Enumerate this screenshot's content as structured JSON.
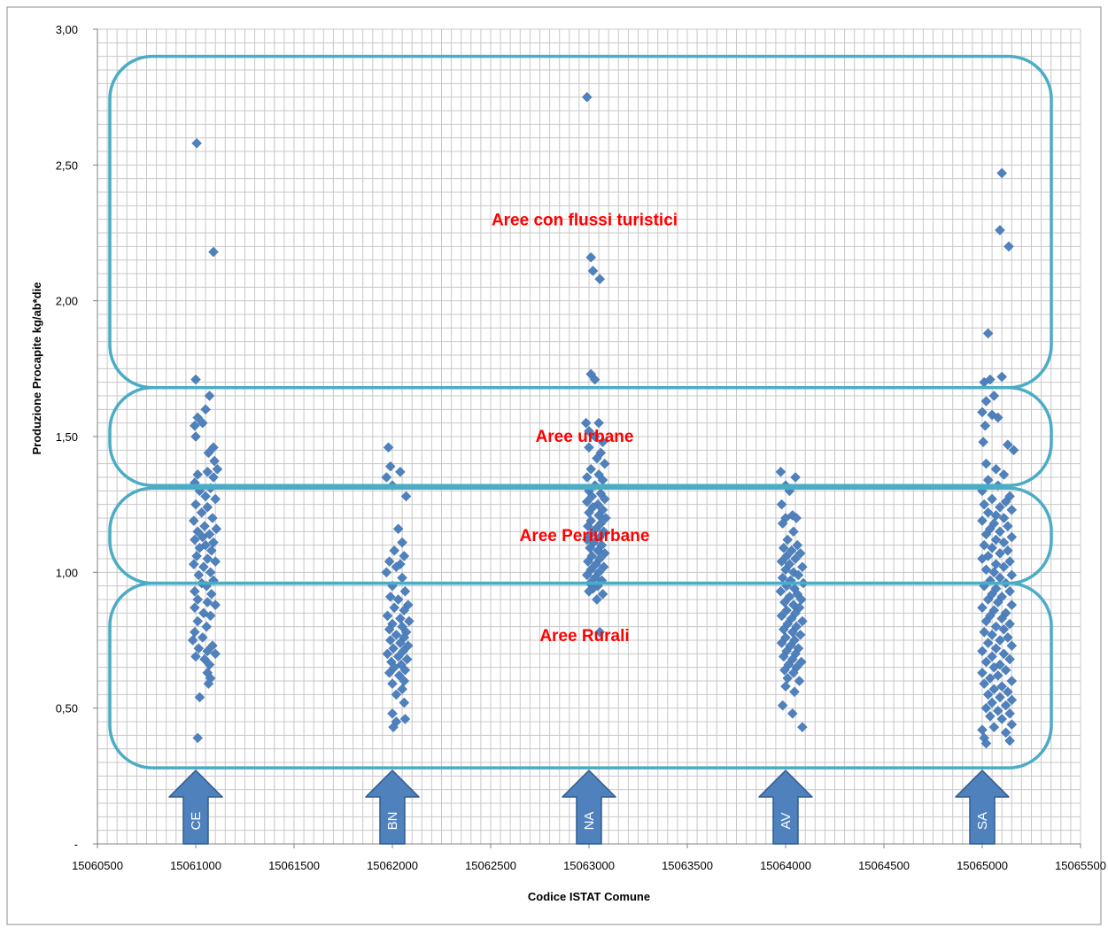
{
  "chart_data": {
    "type": "scatter",
    "title": "",
    "xlabel": "Codice ISTAT Comune",
    "ylabel": "Produzione Procapite  kg/ab*die",
    "xlim": [
      15060500,
      15065500
    ],
    "ylim": [
      0,
      3.0
    ],
    "grid": true,
    "x_ticks": [
      {
        "value": 15060500,
        "label": "15060500"
      },
      {
        "value": 15061000,
        "label": "15061000"
      },
      {
        "value": 15061500,
        "label": "15061500"
      },
      {
        "value": 15062000,
        "label": "15062000"
      },
      {
        "value": 15062500,
        "label": "15062500"
      },
      {
        "value": 15063000,
        "label": "15063000"
      },
      {
        "value": 15063500,
        "label": "15063500"
      },
      {
        "value": 15064000,
        "label": "15064000"
      },
      {
        "value": 15064500,
        "label": "15064500"
      },
      {
        "value": 15065000,
        "label": "15065000"
      },
      {
        "value": 15065500,
        "label": "15065500"
      }
    ],
    "y_ticks": [
      {
        "value": 0,
        "label": "-"
      },
      {
        "value": 0.5,
        "label": "0,50"
      },
      {
        "value": 1.0,
        "label": "1,00"
      },
      {
        "value": 1.5,
        "label": "1,50"
      },
      {
        "value": 2.0,
        "label": "2,00"
      },
      {
        "value": 2.5,
        "label": "2,50"
      },
      {
        "value": 3.0,
        "label": "3,00"
      }
    ],
    "marker_color": "#4F81BD",
    "band_color": "#4BACC6",
    "band_label_color": "#FF0000",
    "arrow_color": "#4F81BD",
    "bands": [
      {
        "label": "Aree con flussi turistici",
        "ymin": 1.68,
        "ymax": 2.9
      },
      {
        "label": "Aree urbane",
        "ymin": 1.32,
        "ymax": 1.68
      },
      {
        "label": "Aree Periurbane",
        "ymin": 0.96,
        "ymax": 1.31
      },
      {
        "label": "Aree Rurali",
        "ymin": 0.28,
        "ymax": 0.96
      }
    ],
    "provinces": [
      {
        "label": "CE",
        "x": 15061000
      },
      {
        "label": "BN",
        "x": 15062000
      },
      {
        "label": "NA",
        "x": 15063000
      },
      {
        "label": "AV",
        "x": 15064000
      },
      {
        "label": "SA",
        "x": 15065000
      }
    ],
    "points": [
      [
        15061005,
        2.58
      ],
      [
        15061090,
        2.18
      ],
      [
        15061000,
        1.71
      ],
      [
        15061070,
        1.65
      ],
      [
        15061050,
        1.6
      ],
      [
        15061010,
        1.57
      ],
      [
        15060995,
        1.54
      ],
      [
        15061035,
        1.55
      ],
      [
        15061000,
        1.5
      ],
      [
        15061090,
        1.46
      ],
      [
        15061065,
        1.44
      ],
      [
        15061095,
        1.41
      ],
      [
        15061110,
        1.38
      ],
      [
        15061060,
        1.37
      ],
      [
        15061010,
        1.36
      ],
      [
        15061090,
        1.35
      ],
      [
        15060995,
        1.33
      ],
      [
        15061075,
        1.31
      ],
      [
        15061020,
        1.3
      ],
      [
        15061050,
        1.28
      ],
      [
        15061100,
        1.27
      ],
      [
        15061000,
        1.25
      ],
      [
        15061060,
        1.24
      ],
      [
        15061030,
        1.22
      ],
      [
        15061085,
        1.2
      ],
      [
        15060990,
        1.19
      ],
      [
        15061045,
        1.17
      ],
      [
        15061105,
        1.16
      ],
      [
        15061010,
        1.15
      ],
      [
        15061070,
        1.14
      ],
      [
        15061035,
        1.13
      ],
      [
        15060995,
        1.12
      ],
      [
        15061090,
        1.11
      ],
      [
        15061050,
        1.1
      ],
      [
        15061020,
        1.09
      ],
      [
        15061080,
        1.08
      ],
      [
        15061005,
        1.06
      ],
      [
        15061060,
        1.05
      ],
      [
        15061100,
        1.04
      ],
      [
        15060990,
        1.03
      ],
      [
        15061040,
        1.02
      ],
      [
        15061075,
        1.0
      ],
      [
        15061015,
        0.99
      ],
      [
        15061090,
        0.97
      ],
      [
        15061030,
        0.96
      ],
      [
        15061055,
        0.95
      ],
      [
        15060995,
        0.93
      ],
      [
        15061080,
        0.92
      ],
      [
        15061010,
        0.9
      ],
      [
        15061060,
        0.89
      ],
      [
        15061100,
        0.88
      ],
      [
        15060995,
        0.87
      ],
      [
        15061040,
        0.85
      ],
      [
        15061075,
        0.84
      ],
      [
        15061010,
        0.82
      ],
      [
        15061055,
        0.8
      ],
      [
        15060995,
        0.78
      ],
      [
        15061035,
        0.76
      ],
      [
        15060985,
        0.75
      ],
      [
        15061085,
        0.73
      ],
      [
        15061015,
        0.72
      ],
      [
        15061060,
        0.71
      ],
      [
        15061100,
        0.7
      ],
      [
        15061000,
        0.69
      ],
      [
        15061045,
        0.68
      ],
      [
        15061070,
        0.66
      ],
      [
        15061060,
        0.63
      ],
      [
        15061075,
        0.61
      ],
      [
        15061065,
        0.59
      ],
      [
        15061020,
        0.54
      ],
      [
        15061010,
        0.39
      ],
      [
        15061980,
        1.46
      ],
      [
        15061990,
        1.39
      ],
      [
        15062040,
        1.37
      ],
      [
        15061970,
        1.35
      ],
      [
        15062000,
        1.32
      ],
      [
        15062070,
        1.28
      ],
      [
        15062030,
        1.16
      ],
      [
        15062050,
        1.11
      ],
      [
        15062010,
        1.08
      ],
      [
        15062060,
        1.06
      ],
      [
        15061985,
        1.04
      ],
      [
        15062040,
        1.03
      ],
      [
        15062020,
        1.02
      ],
      [
        15061970,
        1.0
      ],
      [
        15062050,
        0.98
      ],
      [
        15062000,
        0.95
      ],
      [
        15062065,
        0.93
      ],
      [
        15061990,
        0.91
      ],
      [
        15062030,
        0.9
      ],
      [
        15062080,
        0.88
      ],
      [
        15062010,
        0.87
      ],
      [
        15062060,
        0.86
      ],
      [
        15061975,
        0.84
      ],
      [
        15062040,
        0.83
      ],
      [
        15062085,
        0.82
      ],
      [
        15062000,
        0.81
      ],
      [
        15062050,
        0.8
      ],
      [
        15061985,
        0.79
      ],
      [
        15062070,
        0.78
      ],
      [
        15062020,
        0.77
      ],
      [
        15062060,
        0.76
      ],
      [
        15061990,
        0.75
      ],
      [
        15062040,
        0.74
      ],
      [
        15062080,
        0.73
      ],
      [
        15062005,
        0.72
      ],
      [
        15062055,
        0.71
      ],
      [
        15061975,
        0.7
      ],
      [
        15062030,
        0.69
      ],
      [
        15062075,
        0.68
      ],
      [
        15061995,
        0.67
      ],
      [
        15062045,
        0.66
      ],
      [
        15062010,
        0.65
      ],
      [
        15062065,
        0.64
      ],
      [
        15061985,
        0.63
      ],
      [
        15062035,
        0.62
      ],
      [
        15062060,
        0.6
      ],
      [
        15062000,
        0.59
      ],
      [
        15062050,
        0.57
      ],
      [
        15062020,
        0.55
      ],
      [
        15062060,
        0.52
      ],
      [
        15062000,
        0.48
      ],
      [
        15062065,
        0.46
      ],
      [
        15062020,
        0.45
      ],
      [
        15062005,
        0.43
      ],
      [
        15062990,
        2.75
      ],
      [
        15063010,
        2.16
      ],
      [
        15063020,
        2.11
      ],
      [
        15063055,
        2.08
      ],
      [
        15063010,
        1.73
      ],
      [
        15063030,
        1.71
      ],
      [
        15062985,
        1.55
      ],
      [
        15063050,
        1.55
      ],
      [
        15063000,
        1.52
      ],
      [
        15063030,
        1.5
      ],
      [
        15063070,
        1.48
      ],
      [
        15063000,
        1.46
      ],
      [
        15063060,
        1.44
      ],
      [
        15063040,
        1.42
      ],
      [
        15063080,
        1.4
      ],
      [
        15063010,
        1.38
      ],
      [
        15063050,
        1.36
      ],
      [
        15062990,
        1.35
      ],
      [
        15063070,
        1.34
      ],
      [
        15063030,
        1.32
      ],
      [
        15063000,
        1.3
      ],
      [
        15063060,
        1.29
      ],
      [
        15063015,
        1.28
      ],
      [
        15063080,
        1.27
      ],
      [
        15062990,
        1.26
      ],
      [
        15063045,
        1.25
      ],
      [
        15063020,
        1.24
      ],
      [
        15063070,
        1.23
      ],
      [
        15063000,
        1.22
      ],
      [
        15063050,
        1.21
      ],
      [
        15063085,
        1.2
      ],
      [
        15063010,
        1.19
      ],
      [
        15063060,
        1.18
      ],
      [
        15062995,
        1.17
      ],
      [
        15063035,
        1.16
      ],
      [
        15063075,
        1.15
      ],
      [
        15063010,
        1.14
      ],
      [
        15063055,
        1.13
      ],
      [
        15062990,
        1.12
      ],
      [
        15063025,
        1.11
      ],
      [
        15063065,
        1.1
      ],
      [
        15063005,
        1.09
      ],
      [
        15063045,
        1.08
      ],
      [
        15063080,
        1.07
      ],
      [
        15063015,
        1.06
      ],
      [
        15063055,
        1.05
      ],
      [
        15062995,
        1.04
      ],
      [
        15063035,
        1.03
      ],
      [
        15063075,
        1.02
      ],
      [
        15063010,
        1.01
      ],
      [
        15063050,
        1.0
      ],
      [
        15062990,
        0.99
      ],
      [
        15063030,
        0.98
      ],
      [
        15063065,
        0.97
      ],
      [
        15063005,
        0.96
      ],
      [
        15063045,
        0.95
      ],
      [
        15063020,
        0.94
      ],
      [
        15063000,
        0.93
      ],
      [
        15063070,
        0.92
      ],
      [
        15063040,
        0.9
      ],
      [
        15063055,
        0.78
      ],
      [
        15063975,
        1.37
      ],
      [
        15064050,
        1.35
      ],
      [
        15064000,
        1.32
      ],
      [
        15064020,
        1.3
      ],
      [
        15063980,
        1.25
      ],
      [
        15064035,
        1.21
      ],
      [
        15064000,
        1.2
      ],
      [
        15064055,
        1.2
      ],
      [
        15063985,
        1.18
      ],
      [
        15064040,
        1.15
      ],
      [
        15064010,
        1.12
      ],
      [
        15064060,
        1.1
      ],
      [
        15063990,
        1.09
      ],
      [
        15064030,
        1.08
      ],
      [
        15064075,
        1.07
      ],
      [
        15064005,
        1.06
      ],
      [
        15064050,
        1.05
      ],
      [
        15063980,
        1.04
      ],
      [
        15064020,
        1.03
      ],
      [
        15064085,
        1.02
      ],
      [
        15064000,
        1.01
      ],
      [
        15064040,
        1.0
      ],
      [
        15064065,
        0.99
      ],
      [
        15063985,
        0.98
      ],
      [
        15064025,
        0.97
      ],
      [
        15064090,
        0.96
      ],
      [
        15064005,
        0.95
      ],
      [
        15064045,
        0.94
      ],
      [
        15063975,
        0.93
      ],
      [
        15064060,
        0.92
      ],
      [
        15064020,
        0.91
      ],
      [
        15064080,
        0.9
      ],
      [
        15063995,
        0.89
      ],
      [
        15064040,
        0.88
      ],
      [
        15064070,
        0.87
      ],
      [
        15064005,
        0.86
      ],
      [
        15064050,
        0.85
      ],
      [
        15063980,
        0.84
      ],
      [
        15064030,
        0.83
      ],
      [
        15064085,
        0.82
      ],
      [
        15064010,
        0.81
      ],
      [
        15064055,
        0.8
      ],
      [
        15063990,
        0.79
      ],
      [
        15064035,
        0.78
      ],
      [
        15064075,
        0.77
      ],
      [
        15064000,
        0.76
      ],
      [
        15064045,
        0.75
      ],
      [
        15063980,
        0.74
      ],
      [
        15064025,
        0.73
      ],
      [
        15064065,
        0.72
      ],
      [
        15064005,
        0.71
      ],
      [
        15064050,
        0.7
      ],
      [
        15063990,
        0.69
      ],
      [
        15064035,
        0.68
      ],
      [
        15064080,
        0.67
      ],
      [
        15064015,
        0.66
      ],
      [
        15064055,
        0.65
      ],
      [
        15063995,
        0.64
      ],
      [
        15064040,
        0.63
      ],
      [
        15064010,
        0.61
      ],
      [
        15064070,
        0.6
      ],
      [
        15064000,
        0.58
      ],
      [
        15064045,
        0.56
      ],
      [
        15063985,
        0.51
      ],
      [
        15064035,
        0.48
      ],
      [
        15064085,
        0.43
      ],
      [
        15065100,
        2.47
      ],
      [
        15065090,
        2.26
      ],
      [
        15065135,
        2.2
      ],
      [
        15065030,
        1.88
      ],
      [
        15065010,
        1.7
      ],
      [
        15065040,
        1.71
      ],
      [
        15065100,
        1.72
      ],
      [
        15065060,
        1.65
      ],
      [
        15065020,
        1.63
      ],
      [
        15065050,
        1.58
      ],
      [
        15065000,
        1.59
      ],
      [
        15065080,
        1.57
      ],
      [
        15065015,
        1.54
      ],
      [
        15065005,
        1.48
      ],
      [
        15065130,
        1.47
      ],
      [
        15065160,
        1.45
      ],
      [
        15065020,
        1.4
      ],
      [
        15065070,
        1.38
      ],
      [
        15065110,
        1.36
      ],
      [
        15065030,
        1.34
      ],
      [
        15065080,
        1.32
      ],
      [
        15065000,
        1.3
      ],
      [
        15065140,
        1.28
      ],
      [
        15065050,
        1.27
      ],
      [
        15065120,
        1.26
      ],
      [
        15065010,
        1.25
      ],
      [
        15065090,
        1.24
      ],
      [
        15065150,
        1.23
      ],
      [
        15065030,
        1.22
      ],
      [
        15065070,
        1.21
      ],
      [
        15065110,
        1.2
      ],
      [
        15065000,
        1.19
      ],
      [
        15065060,
        1.18
      ],
      [
        15065130,
        1.17
      ],
      [
        15065040,
        1.16
      ],
      [
        15065090,
        1.15
      ],
      [
        15065020,
        1.14
      ],
      [
        15065150,
        1.13
      ],
      [
        15065070,
        1.12
      ],
      [
        15065110,
        1.11
      ],
      [
        15065010,
        1.1
      ],
      [
        15065050,
        1.09
      ],
      [
        15065130,
        1.08
      ],
      [
        15065090,
        1.07
      ],
      [
        15065030,
        1.06
      ],
      [
        15065000,
        1.05
      ],
      [
        15065140,
        1.04
      ],
      [
        15065070,
        1.03
      ],
      [
        15065110,
        1.02
      ],
      [
        15065020,
        1.01
      ],
      [
        15065060,
        1.0
      ],
      [
        15065150,
        0.99
      ],
      [
        15065090,
        0.98
      ],
      [
        15065040,
        0.97
      ],
      [
        15065120,
        0.96
      ],
      [
        15065010,
        0.95
      ],
      [
        15065070,
        0.94
      ],
      [
        15065140,
        0.93
      ],
      [
        15065050,
        0.92
      ],
      [
        15065100,
        0.91
      ],
      [
        15065030,
        0.9
      ],
      [
        15065080,
        0.89
      ],
      [
        15065150,
        0.88
      ],
      [
        15065000,
        0.87
      ],
      [
        15065060,
        0.86
      ],
      [
        15065120,
        0.85
      ],
      [
        15065040,
        0.84
      ],
      [
        15065100,
        0.83
      ],
      [
        15065020,
        0.82
      ],
      [
        15065140,
        0.81
      ],
      [
        15065070,
        0.8
      ],
      [
        15065110,
        0.79
      ],
      [
        15065010,
        0.78
      ],
      [
        15065050,
        0.77
      ],
      [
        15065130,
        0.76
      ],
      [
        15065090,
        0.75
      ],
      [
        15065030,
        0.74
      ],
      [
        15065150,
        0.73
      ],
      [
        15065070,
        0.72
      ],
      [
        15065000,
        0.71
      ],
      [
        15065110,
        0.7
      ],
      [
        15065050,
        0.69
      ],
      [
        15065140,
        0.68
      ],
      [
        15065020,
        0.67
      ],
      [
        15065090,
        0.66
      ],
      [
        15065060,
        0.65
      ],
      [
        15065120,
        0.64
      ],
      [
        15065000,
        0.63
      ],
      [
        15065080,
        0.62
      ],
      [
        15065040,
        0.61
      ],
      [
        15065150,
        0.6
      ],
      [
        15065010,
        0.59
      ],
      [
        15065100,
        0.58
      ],
      [
        15065060,
        0.57
      ],
      [
        15065130,
        0.56
      ],
      [
        15065030,
        0.55
      ],
      [
        15065090,
        0.54
      ],
      [
        15065150,
        0.53
      ],
      [
        15065050,
        0.52
      ],
      [
        15065120,
        0.51
      ],
      [
        15065020,
        0.5
      ],
      [
        15065080,
        0.49
      ],
      [
        15065140,
        0.48
      ],
      [
        15065040,
        0.47
      ],
      [
        15065100,
        0.46
      ],
      [
        15065150,
        0.44
      ],
      [
        15065060,
        0.43
      ],
      [
        15065000,
        0.42
      ],
      [
        15065120,
        0.41
      ],
      [
        15065010,
        0.39
      ],
      [
        15065140,
        0.38
      ],
      [
        15065020,
        0.37
      ]
    ]
  }
}
